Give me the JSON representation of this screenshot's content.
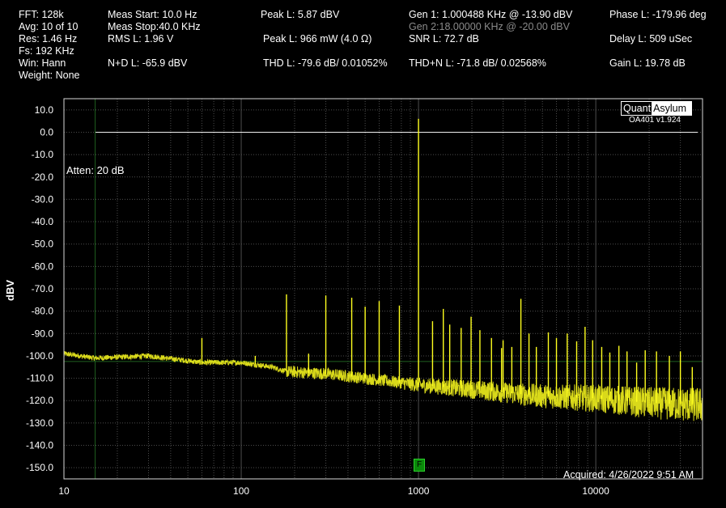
{
  "header": {
    "col1": [
      "FFT:  128k",
      "Avg: 10 of 10",
      "Res: 1.46 Hz",
      "Fs: 192 KHz",
      "Win: Hann",
      "Weight: None"
    ],
    "col2": [
      "Meas Start: 10.0 Hz",
      "Meas Stop:40.0 KHz",
      "RMS L: 1.96 V",
      "N+D L: -65.9 dBV"
    ],
    "col3": [
      "Peak L: 5.87 dBV",
      "Peak L: 966 mW (4.0 Ω)",
      "THD L: -79.6 dB/ 0.01052%"
    ],
    "col4": [
      "Gen 1: 1.000488 KHz @ -13.90  dBV",
      "Gen 2:18.00000 KHz @ -20.00  dBV",
      "SNR L: 72.7 dB",
      "THD+N L: -71.8 dB/ 0.02568%"
    ],
    "col5": [
      "Phase L: -179.96 deg",
      "Delay L: 509 uSec",
      "Gain L: 19.78 dB"
    ]
  },
  "logo": {
    "part1": "Quant",
    "part2": "Asylum",
    "version": "OA401 v1.924"
  },
  "annotations": {
    "atten": "Atten: 20 dB",
    "acquired": "Acquired: 4/26/2022  9:51 AM",
    "marker": "F"
  },
  "colors": {
    "trace": "#ffff1e",
    "grid": "#4d4d4d",
    "cursor": "#1f5f1f",
    "background": "#000000"
  },
  "chart_data": {
    "type": "line",
    "title": "",
    "xlabel": "",
    "ylabel": "dBV",
    "x_scale": "log",
    "xlim": [
      10,
      40000
    ],
    "ylim": [
      -155,
      15
    ],
    "x_tick_labels": [
      "10",
      "100",
      "1000",
      "10000"
    ],
    "x_ticks": [
      10,
      100,
      1000,
      10000
    ],
    "y_ticks": [
      10,
      0,
      -10,
      -20,
      -30,
      -40,
      -50,
      -60,
      -70,
      -80,
      -90,
      -100,
      -110,
      -120,
      -130,
      -140,
      -150
    ],
    "y_tick_labels": [
      "10.0",
      "0.0",
      "-10.0",
      "-20.0",
      "-30.0",
      "-40.0",
      "-50.0",
      "-60.0",
      "-70.0",
      "-80.0",
      "-90.0",
      "-100.0",
      "-110.0",
      "-120.0",
      "-130.0",
      "-140.0",
      "-150.0"
    ],
    "grid": true,
    "reference_line_dBV": 0,
    "cursor": {
      "x_hz": 15,
      "y_dbv": -102.5
    },
    "marker_f_hz": 1000,
    "noise_floor": {
      "x": [
        10,
        15,
        30,
        60,
        100,
        150,
        180,
        300,
        500,
        1000,
        2000,
        5000,
        10000,
        20000,
        40000
      ],
      "y": [
        -99,
        -101,
        -100,
        -103,
        -103,
        -105,
        -107,
        -108,
        -110,
        -113,
        -115,
        -118,
        -119,
        -121,
        -122
      ],
      "spread_from_hz": 800,
      "spread_db": [
        3,
        8
      ]
    },
    "peaks": [
      {
        "x": 60,
        "y": -92
      },
      {
        "x": 120,
        "y": -100
      },
      {
        "x": 180,
        "y": -72.5
      },
      {
        "x": 240,
        "y": -99
      },
      {
        "x": 300,
        "y": -73
      },
      {
        "x": 420,
        "y": -74
      },
      {
        "x": 500,
        "y": -78
      },
      {
        "x": 600,
        "y": -75.5
      },
      {
        "x": 780,
        "y": -77.5
      },
      {
        "x": 1000,
        "y": 6
      },
      {
        "x": 1200,
        "y": -84.5
      },
      {
        "x": 1380,
        "y": -79
      },
      {
        "x": 1500,
        "y": -86
      },
      {
        "x": 1740,
        "y": -87.5
      },
      {
        "x": 1980,
        "y": -82.5
      },
      {
        "x": 2220,
        "y": -88.5
      },
      {
        "x": 2580,
        "y": -92
      },
      {
        "x": 2940,
        "y": -96.5
      },
      {
        "x": 3000,
        "y": -93
      },
      {
        "x": 3360,
        "y": -96
      },
      {
        "x": 3780,
        "y": -74.5
      },
      {
        "x": 4200,
        "y": -90
      },
      {
        "x": 4620,
        "y": -96
      },
      {
        "x": 5400,
        "y": -89.5
      },
      {
        "x": 6000,
        "y": -92
      },
      {
        "x": 6900,
        "y": -90
      },
      {
        "x": 7800,
        "y": -93.5
      },
      {
        "x": 8700,
        "y": -87
      },
      {
        "x": 9600,
        "y": -93
      },
      {
        "x": 10800,
        "y": -96
      },
      {
        "x": 12000,
        "y": -98.5
      },
      {
        "x": 13500,
        "y": -95.5
      },
      {
        "x": 15000,
        "y": -98
      },
      {
        "x": 17000,
        "y": -103
      },
      {
        "x": 19000,
        "y": -97.5
      },
      {
        "x": 22000,
        "y": -98
      },
      {
        "x": 26000,
        "y": -100
      },
      {
        "x": 30000,
        "y": -98
      },
      {
        "x": 35000,
        "y": -105
      }
    ]
  }
}
